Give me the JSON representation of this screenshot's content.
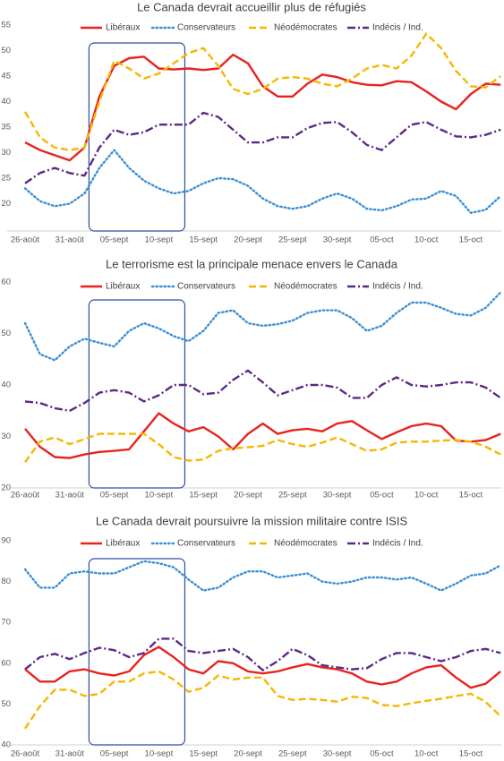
{
  "chart_data": [
    {
      "type": "line",
      "title": "Le Canada devrait accueillir plus de réfugiés",
      "categories": [
        "26-août",
        null,
        null,
        "31-août",
        null,
        null,
        "05-sept",
        null,
        null,
        "10-sept",
        null,
        null,
        "15-sept",
        null,
        null,
        "20-sept",
        null,
        null,
        "25-sept",
        null,
        null,
        "30-sept",
        null,
        null,
        "05-oct",
        null,
        null,
        "10-oct",
        null,
        null,
        "15-oct",
        null,
        null
      ],
      "ylim": [
        15,
        55
      ],
      "yticks": [
        20,
        25,
        30,
        35,
        40,
        45,
        50,
        55
      ],
      "grid": false,
      "legend": "top",
      "series": [
        {
          "name": "Libéraux",
          "color": "#e8231f",
          "style": "solid",
          "values": [
            32,
            30.5,
            29.5,
            28.5,
            31,
            41,
            47,
            48.5,
            48.8,
            46.5,
            46.3,
            46.5,
            46.2,
            46.5,
            49.2,
            47.5,
            43,
            41,
            41,
            43.5,
            45.3,
            44.8,
            43.8,
            43.3,
            43.2,
            44,
            43.8,
            42,
            40,
            38.5,
            41.5,
            43.5,
            43.3
          ]
        },
        {
          "name": "Conservateurs",
          "color": "#3a8fd6",
          "style": "dotted",
          "values": [
            23,
            20.5,
            19.5,
            20,
            22,
            27,
            30.5,
            27,
            24.5,
            23,
            22,
            22.5,
            24,
            25,
            24.8,
            23.5,
            21,
            19.5,
            19,
            19.5,
            21,
            22,
            21,
            19,
            18.7,
            19.5,
            20.8,
            21,
            22.5,
            21.5,
            18.2,
            18.8,
            21.5
          ]
        },
        {
          "name": "Néodémocrates",
          "color": "#f5b800",
          "style": "dashed",
          "values": [
            38,
            33,
            31,
            30.5,
            31,
            40,
            48,
            46.5,
            44.5,
            45.5,
            47.5,
            49.5,
            50.5,
            47,
            42.5,
            41.5,
            42.5,
            44.5,
            44.8,
            44.5,
            43.5,
            43,
            44.5,
            46.5,
            47.2,
            46.5,
            49,
            53.3,
            50.5,
            46,
            43,
            42.8,
            45
          ]
        },
        {
          "name": "Indécis / Ind.",
          "color": "#5b2a86",
          "style": "dashdot",
          "values": [
            24,
            26,
            27,
            26,
            25.5,
            31,
            34.5,
            33.5,
            34,
            35.5,
            35.5,
            35.5,
            37.8,
            37,
            34.5,
            32,
            32,
            33,
            33,
            34.8,
            35.8,
            36,
            34,
            31.5,
            30.5,
            33,
            35.5,
            36,
            34.5,
            33.2,
            33,
            33.5,
            34.5
          ]
        }
      ]
    },
    {
      "type": "line",
      "title": "Le terrorisme est la principale menace envers le Canada",
      "categories": [
        "26-août",
        null,
        null,
        "31-août",
        null,
        null,
        "05-sept",
        null,
        null,
        "10-sept",
        null,
        null,
        "15-sept",
        null,
        null,
        "20-sept",
        null,
        null,
        "25-sept",
        null,
        null,
        "30-sept",
        null,
        null,
        "05-oct",
        null,
        null,
        "10-oct",
        null,
        null,
        "15-oct",
        null,
        null
      ],
      "ylim": [
        20,
        60
      ],
      "yticks": [
        20,
        30,
        40,
        50,
        60
      ],
      "grid": false,
      "legend": "top",
      "series": [
        {
          "name": "Libéraux",
          "color": "#e8231f",
          "style": "solid",
          "values": [
            31.5,
            28,
            26,
            25.8,
            26.5,
            27,
            27.2,
            27.5,
            31,
            34.5,
            32.5,
            31,
            31.8,
            30,
            27.5,
            30.5,
            32.5,
            30.5,
            31.2,
            31.5,
            31,
            32.5,
            33,
            31.2,
            29.5,
            30.8,
            32,
            32.5,
            32,
            29.2,
            29,
            29.3,
            30.5
          ]
        },
        {
          "name": "Conservateurs",
          "color": "#3a8fd6",
          "style": "dotted",
          "values": [
            52,
            46,
            44.8,
            47.5,
            49,
            48.2,
            47.5,
            50.5,
            52,
            51,
            49.5,
            48.5,
            50.5,
            54,
            54.5,
            52,
            51.5,
            51.8,
            52.5,
            54,
            54.5,
            54.5,
            53,
            50.5,
            51.5,
            54,
            56,
            56,
            55,
            53.8,
            53.5,
            55,
            58
          ]
        },
        {
          "name": "Néodémocrates",
          "color": "#f5b800",
          "style": "dashed",
          "values": [
            25,
            29,
            29.8,
            28.5,
            29.5,
            30.5,
            30.5,
            30.5,
            30.5,
            28.5,
            26,
            25.3,
            25.5,
            27.2,
            27.7,
            27.9,
            28.2,
            29.3,
            28.5,
            28,
            28.8,
            29.8,
            28.5,
            27.2,
            27.5,
            28.8,
            29,
            29,
            29.2,
            29.3,
            29,
            28,
            26.5
          ]
        },
        {
          "name": "Indécis / Ind.",
          "color": "#5b2a86",
          "style": "dashdot",
          "values": [
            36.8,
            36.5,
            35.5,
            35,
            36.5,
            38.5,
            39,
            38.5,
            36.8,
            38,
            40,
            40,
            38.2,
            38.5,
            41,
            42.8,
            40.5,
            38,
            39,
            40,
            40,
            39.5,
            37.5,
            37.5,
            40,
            41.5,
            40,
            39.7,
            40,
            40.5,
            40.5,
            39.5,
            37.5
          ]
        }
      ]
    },
    {
      "type": "line",
      "title": "Le Canada devrait poursuivre  la mission  militaire contre ISIS",
      "categories": [
        "26-août",
        null,
        null,
        "31-août",
        null,
        null,
        "05-sept",
        null,
        null,
        "10-sept",
        null,
        null,
        "15-sept",
        null,
        null,
        "20-sept",
        null,
        null,
        "25-sept",
        null,
        null,
        "30-sept",
        null,
        null,
        "05-oct",
        null,
        null,
        "10-oct",
        null,
        null,
        "15-oct",
        null,
        null
      ],
      "ylim": [
        40,
        90
      ],
      "yticks": [
        40,
        50,
        60,
        70,
        80,
        90
      ],
      "grid": false,
      "legend": "top",
      "series": [
        {
          "name": "Libéraux",
          "color": "#e8231f",
          "style": "solid",
          "values": [
            58.5,
            55.5,
            55.5,
            58,
            58.5,
            57.5,
            57,
            58,
            62,
            64,
            61.5,
            58.5,
            57.5,
            60.5,
            60,
            58,
            57.5,
            58,
            59,
            59.8,
            59,
            58.5,
            57.5,
            55.5,
            54.8,
            55.5,
            57.5,
            59,
            59.5,
            56.5,
            54,
            55,
            58
          ]
        },
        {
          "name": "Conservateurs",
          "color": "#3a8fd6",
          "style": "dotted",
          "values": [
            83,
            78.5,
            78.5,
            82,
            82.5,
            82,
            82,
            83.5,
            85,
            84.5,
            83.5,
            80.5,
            77.8,
            78.5,
            81,
            82.5,
            82.5,
            81,
            81.5,
            82,
            80,
            79.5,
            80,
            81,
            81,
            80.5,
            81,
            79.5,
            77.8,
            79.5,
            81.5,
            82,
            84
          ]
        },
        {
          "name": "Néodémocrates",
          "color": "#f5b800",
          "style": "dashed",
          "values": [
            44,
            49.5,
            53.5,
            53.5,
            52,
            52.5,
            55.5,
            55.5,
            57.5,
            58,
            56,
            53,
            54,
            57,
            56,
            56.5,
            56.5,
            52,
            51,
            51.3,
            51,
            50.6,
            51.8,
            51.5,
            49.8,
            49.5,
            50.2,
            50.8,
            51.3,
            52,
            52.5,
            50.5,
            47
          ]
        },
        {
          "name": "Indécis / Ind.",
          "color": "#5b2a86",
          "style": "dashdot",
          "values": [
            58.5,
            61.5,
            62.3,
            61,
            62.5,
            63.8,
            63.2,
            61.5,
            62.5,
            66,
            66,
            63,
            62.5,
            63,
            63.5,
            61.5,
            58.3,
            60.5,
            63.5,
            62,
            59.5,
            59,
            58.5,
            58.8,
            61,
            62.5,
            62.5,
            61.5,
            60.5,
            61.5,
            63,
            63.5,
            62.5
          ]
        }
      ]
    }
  ]
}
